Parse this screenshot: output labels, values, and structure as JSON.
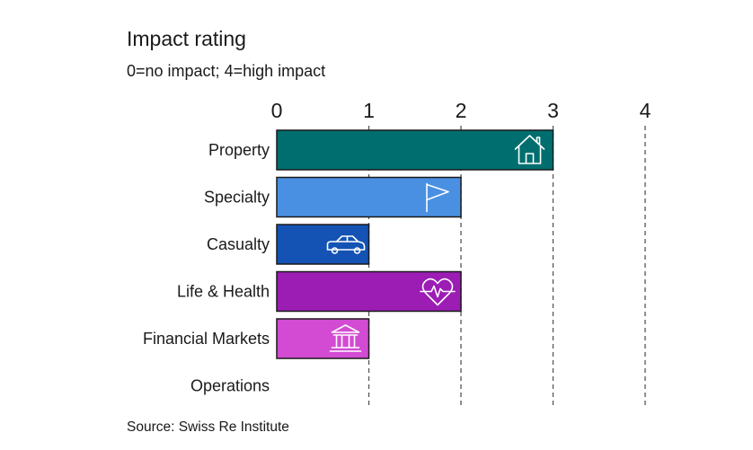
{
  "chart_data": {
    "type": "bar",
    "orientation": "horizontal",
    "title": "Impact rating",
    "subtitle": "0=no impact; 4=high impact",
    "source": "Source: Swiss Re Institute",
    "categories": [
      "Property",
      "Specialty",
      "Casualty",
      "Life & Health",
      "Financial Markets",
      "Operations"
    ],
    "values": [
      3,
      2,
      1,
      2,
      1,
      0
    ],
    "colors": [
      "#006E6E",
      "#4A90E2",
      "#1453B4",
      "#9B1DB4",
      "#D24BD2",
      "#ffffff"
    ],
    "icons": [
      "house-icon",
      "flag-icon",
      "car-icon",
      "heart-pulse-icon",
      "bank-icon",
      ""
    ],
    "xlim": [
      0,
      4
    ],
    "xticks": [
      "0",
      "1",
      "2",
      "3",
      "4"
    ],
    "grid": true,
    "xlabel": "",
    "ylabel": ""
  }
}
